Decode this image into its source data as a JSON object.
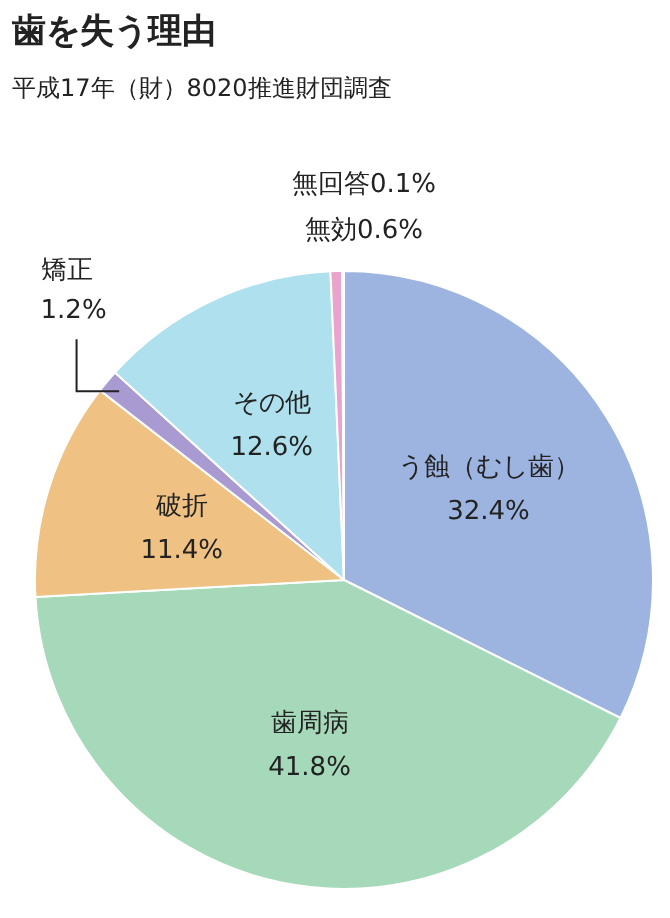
{
  "chart_data": {
    "type": "pie",
    "title": "歯を失う理由",
    "subtitle": "平成17年（財）8020推進財団調査",
    "categories": [
      "う蝕（むし歯）",
      "歯周病",
      "破折",
      "矯正",
      "その他",
      "無効",
      "無回答"
    ],
    "values": [
      32.4,
      41.8,
      11.4,
      1.2,
      12.6,
      0.6,
      0.1
    ],
    "value_labels": [
      "32.4%",
      "41.8%",
      "11.4%",
      "1.2%",
      "12.6%",
      "0.6%",
      "0.1%"
    ],
    "colors": [
      "#9db4e0",
      "#a6d9b9",
      "#efc283",
      "#a99bd2",
      "#aee0ee",
      "#eaa3cb",
      "#c77fb4"
    ],
    "legend": false
  }
}
